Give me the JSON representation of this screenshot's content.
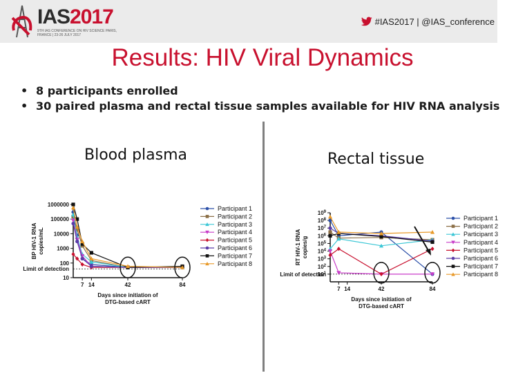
{
  "header": {
    "logo_main": "IAS",
    "logo_year": "2017",
    "logo_subtitle": "9TH IAS CONFERENCE ON HIV SCIENCE PARIS, FRANCE | 23-26 JULY 2017",
    "hashtag": "#IAS2017 | @IAS_conference",
    "twitter_icon": "twitter-bird-icon",
    "brand_color": "#c8102e"
  },
  "title": "Results:  HIV Viral Dynamics",
  "bullets": [
    "8 participants enrolled",
    "30 paired plasma and rectal tissue samples available for HIV RNA analysis"
  ],
  "chart_data": [
    {
      "type": "line",
      "title": "Blood plasma",
      "ylabel": "BP HIV-1 RNA copies/mL",
      "xlabel": "Days since initiation of DTG-based cART",
      "yscale": "log",
      "ylim": [
        10,
        1000000
      ],
      "ytick_labels": [
        "1000000",
        "100000",
        "10000",
        "1000",
        "100",
        "10"
      ],
      "yticks": [
        1000000,
        100000,
        10000,
        1000,
        100,
        10
      ],
      "xticks": [
        7,
        14,
        42,
        84
      ],
      "lod_label": "Limit of detection",
      "lod_value": 40,
      "circled_x": [
        42,
        84
      ],
      "series": [
        {
          "name": "Participant 1",
          "color": "#2b4fa8",
          "marker": "circle",
          "x": [
            0,
            3,
            7,
            14,
            42,
            84
          ],
          "y": [
            300000,
            8000,
            200,
            80,
            50,
            50
          ]
        },
        {
          "name": "Participant 2",
          "color": "#8b6f47",
          "marker": "square",
          "x": [
            0,
            3,
            7,
            14,
            42,
            84
          ],
          "y": [
            150000,
            20000,
            1500,
            150,
            50,
            50
          ]
        },
        {
          "name": "Participant 3",
          "color": "#3cc7d6",
          "marker": "triangle",
          "x": [
            0,
            3,
            7,
            14,
            42,
            84
          ],
          "y": [
            200000,
            6000,
            400,
            120,
            50,
            50
          ]
        },
        {
          "name": "Participant 4",
          "color": "#c83cc8",
          "marker": "triangle-down",
          "x": [
            0,
            3,
            7,
            14,
            42,
            84
          ],
          "y": [
            80000,
            4000,
            300,
            60,
            50,
            50
          ]
        },
        {
          "name": "Participant 5",
          "color": "#c8102e",
          "marker": "diamond",
          "x": [
            0,
            3,
            7,
            14,
            42,
            84
          ],
          "y": [
            400,
            200,
            80,
            50,
            50,
            50
          ]
        },
        {
          "name": "Participant 6",
          "color": "#5a3ca8",
          "marker": "circle",
          "x": [
            0,
            3,
            7,
            14,
            42,
            84
          ],
          "y": [
            50000,
            3000,
            200,
            60,
            50,
            50
          ]
        },
        {
          "name": "Participant 7",
          "color": "#111111",
          "marker": "square",
          "x": [
            0,
            3,
            7,
            14,
            42,
            84
          ],
          "y": [
            1000000,
            100000,
            2000,
            500,
            50,
            60
          ]
        },
        {
          "name": "Participant 8",
          "color": "#e89a2a",
          "marker": "triangle",
          "x": [
            0,
            3,
            7,
            14,
            42,
            84
          ],
          "y": [
            600000,
            30000,
            3000,
            200,
            60,
            50
          ]
        }
      ]
    },
    {
      "type": "line",
      "title": "Rectal tissue",
      "ylabel": "RT HIV-1 RNA copies/g",
      "xlabel": "Days since initiation of DTG-based cART",
      "yscale": "log",
      "ylim": [
        1,
        1000000000
      ],
      "ytick_exponents": [
        "9",
        "8",
        "7",
        "6",
        "5",
        "4",
        "3",
        "2",
        "1"
      ],
      "xticks": [
        7,
        14,
        42,
        84
      ],
      "lod_label": "Limit of detection",
      "lod_value": 10,
      "circled_x": [
        42,
        84
      ],
      "arrow_x": 84,
      "series": [
        {
          "name": "Participant 1",
          "color": "#2b4fa8",
          "marker": "circle",
          "x": [
            0,
            7,
            42,
            84
          ],
          "y": [
            100000000,
            1000000,
            3000000,
            10
          ]
        },
        {
          "name": "Participant 2",
          "color": "#8b6f47",
          "marker": "square",
          "x": [
            0,
            7,
            42,
            84
          ],
          "y": [
            3000000,
            500000,
            600000,
            300000
          ]
        },
        {
          "name": "Participant 3",
          "color": "#3cc7d6",
          "marker": "triangle",
          "x": [
            0,
            7,
            42,
            84
          ],
          "y": [
            20000,
            400000,
            50000,
            300000
          ]
        },
        {
          "name": "Participant 4",
          "color": "#c83cc8",
          "marker": "triangle-down",
          "x": [
            0,
            7,
            42,
            84
          ],
          "y": [
            10000,
            15,
            10,
            10
          ]
        },
        {
          "name": "Participant 5",
          "color": "#c8102e",
          "marker": "diamond",
          "x": [
            0,
            7,
            42,
            84
          ],
          "y": [
            3000,
            20000,
            10,
            20000
          ]
        },
        {
          "name": "Participant 6",
          "color": "#5a3ca8",
          "marker": "circle",
          "x": [
            0,
            7,
            42,
            84
          ],
          "y": [
            10000000,
            2000000,
            1000000,
            200000
          ]
        },
        {
          "name": "Participant 7",
          "color": "#111111",
          "marker": "square",
          "x": [
            0,
            7,
            42,
            84
          ],
          "y": [
            1000000,
            2000000,
            800000,
            150000
          ]
        },
        {
          "name": "Participant 8",
          "color": "#e89a2a",
          "marker": "triangle",
          "x": [
            0,
            7,
            42,
            84
          ],
          "y": [
            300000000,
            3000000,
            2000000,
            3000000
          ]
        }
      ]
    }
  ]
}
